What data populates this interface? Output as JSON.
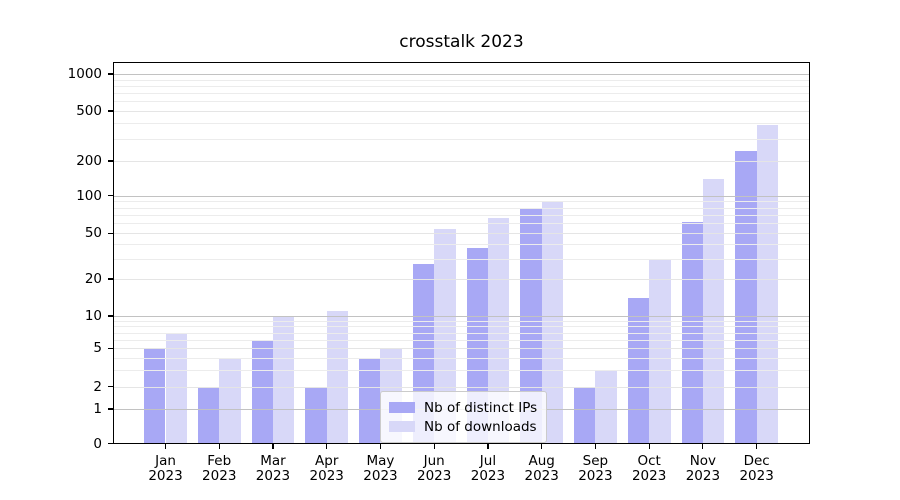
{
  "chart_data": {
    "type": "bar",
    "title": "crosstalk 2023",
    "yscale": "symlog",
    "grid": true,
    "categories": [
      "Jan",
      "Feb",
      "Mar",
      "Apr",
      "May",
      "Jun",
      "Jul",
      "Aug",
      "Sep",
      "Oct",
      "Nov",
      "Dec"
    ],
    "year": "2023",
    "yticks": [
      0,
      1,
      2,
      5,
      10,
      20,
      50,
      100,
      200,
      500,
      1000
    ],
    "ylim": [
      0,
      1300
    ],
    "legend_position": "inside-bottom-center",
    "series": [
      {
        "key": "distinct-ips",
        "name": "Nb of distinct IPs",
        "color": "#a8a8f5",
        "values": [
          5,
          2,
          6,
          2,
          4,
          27,
          37,
          78,
          2,
          14,
          62,
          240
        ]
      },
      {
        "key": "downloads",
        "name": "Nb of downloads",
        "color": "#d8d8f8",
        "values": [
          7,
          4,
          10,
          11,
          5,
          54,
          66,
          90,
          3,
          30,
          140,
          390
        ]
      }
    ]
  }
}
